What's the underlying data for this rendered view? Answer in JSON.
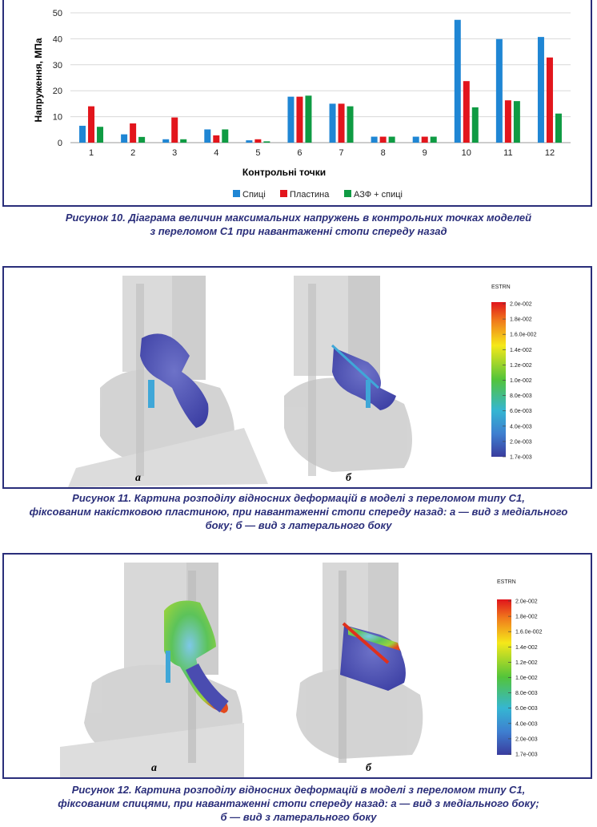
{
  "chart_data": {
    "type": "bar",
    "categories": [
      "1",
      "2",
      "3",
      "4",
      "5",
      "6",
      "7",
      "8",
      "9",
      "10",
      "11",
      "12"
    ],
    "series": [
      {
        "name": "Спиці",
        "color": "#1f86d4",
        "values": [
          6.5,
          3.2,
          1.3,
          5.1,
          0.9,
          17.7,
          15.0,
          2.3,
          2.3,
          47.3,
          39.9,
          40.7
        ]
      },
      {
        "name": "Пластина",
        "color": "#e2151c",
        "values": [
          14.0,
          7.4,
          9.7,
          2.8,
          1.3,
          17.7,
          15.0,
          2.3,
          2.3,
          23.7,
          16.3,
          32.8
        ]
      },
      {
        "name": "АЗФ + спиці",
        "color": "#0f9b43",
        "values": [
          6.1,
          2.2,
          1.3,
          5.1,
          0.5,
          18.1,
          14.0,
          2.3,
          2.3,
          13.6,
          16.0,
          11.2
        ]
      }
    ],
    "ylim": [
      0,
      50
    ],
    "yticks": [
      "0",
      "10",
      "20",
      "30",
      "40",
      "50"
    ],
    "xlabel": "Контрольні точки",
    "ylabel": "Напруження, МПа",
    "grid": true,
    "legend_position": "bottom-center"
  },
  "captions": {
    "fig10": [
      "Рисунок 10. Діаграма величин максимальних напружень в контрольних точках моделей",
      "з переломом С1 при навантаженні стопи спереду назад"
    ],
    "fig11": [
      "Рисунок 11. Картина розподілу відносних деформацій в моделі з переломом типу С1,",
      "фіксованим накістковою пластиною, при навантаженні стопи спереду назад: а — вид з медіального",
      "боку; б — вид з латерального боку"
    ],
    "fig12": [
      "Рисунок 12. Картина розподілу відносних деформацій в моделі з переломом типу С1,",
      "фіксованим спицями, при навантаженні стопи спереду назад: а — вид з медіального боку;",
      "б — вид з латерального боку"
    ]
  },
  "figures": {
    "fig11": {
      "label_a": "а",
      "label_b": "б"
    },
    "fig12": {
      "label_a": "а",
      "label_b": "б"
    }
  },
  "scale": {
    "title": "ESTRN",
    "ticks": [
      "2.0e-002",
      "1.8e-002",
      "1.6.0e-002",
      "1.4e-002",
      "1.2e-002",
      "1.0e-002",
      "8.0e-003",
      "6.0e-003",
      "4.0e-003",
      "2.0e-003",
      "1.7e-003"
    ]
  },
  "colors": {
    "frame": "#2a2e7a",
    "caption": "#2a2e7a"
  }
}
